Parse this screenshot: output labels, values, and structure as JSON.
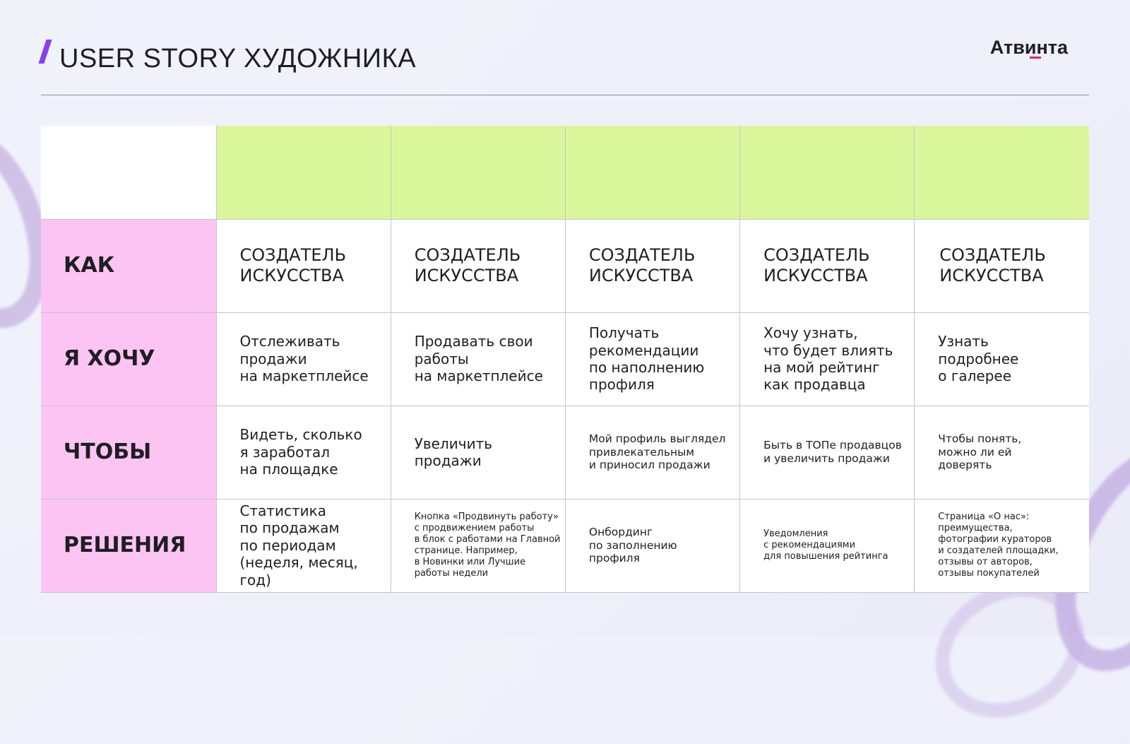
{
  "header": {
    "title": "USER STORY ХУДОЖНИКА",
    "logo": "Атвинта"
  },
  "colors": {
    "accent": "#8a3df5",
    "header_row": "#d9f79a",
    "label_col": "#fbc4f2",
    "logo_underline": "#f0206f"
  },
  "rows": [
    {
      "label": "КАК",
      "cells": [
        "СОЗДАТЕЛЬ\nИСКУССТВА",
        "СОЗДАТЕЛЬ\nИСКУССТВА",
        "СОЗДАТЕЛЬ\nИСКУССТВА",
        "СОЗДАТЕЛЬ\nИСКУССТВА",
        "СОЗДАТЕЛЬ\nИСКУССТВА"
      ]
    },
    {
      "label": "Я ХОЧУ",
      "cells": [
        "Отслеживать\nпродажи\nна маркетплейсе",
        "Продавать свои\nработы\nна маркетплейсе",
        "Получать\nрекомендации\nпо наполнению\nпрофиля",
        "Хочу узнать,\nчто будет влиять\nна мой рейтинг\nкак продавца",
        "Узнать\nподробнее\nо галерее"
      ]
    },
    {
      "label": "ЧТОБЫ",
      "cells": [
        "Видеть, сколько\nя заработал\nна площадке",
        "Увеличить\nпродажи",
        "Мой профиль выглядел\nпривлекательным\nи приносил продажи",
        "Быть в ТОПе продавцов\nи увеличить продажи",
        "Чтобы понять,\nможно ли ей\nдоверять"
      ]
    },
    {
      "label": "РЕШЕНИЯ",
      "cells": [
        "Статистика\nпо продажам\nпо периодам\n(неделя, месяц, год)",
        "Кнопка «Продвинуть работу»\nс продвижением работы\nв блок с работами на Главной\nстранице. Например,\nв Новинки или Лучшие\nработы недели",
        "Онбординг\nпо заполнению\nпрофиля",
        "Уведомления\nс рекомендациями\nдля повышения рейтинга",
        "Страница «О нас»:\nпреимущества,\nфотографии кураторов\nи создателей площадки,\nотзывы от авторов,\nотзывы покупателей"
      ]
    }
  ]
}
